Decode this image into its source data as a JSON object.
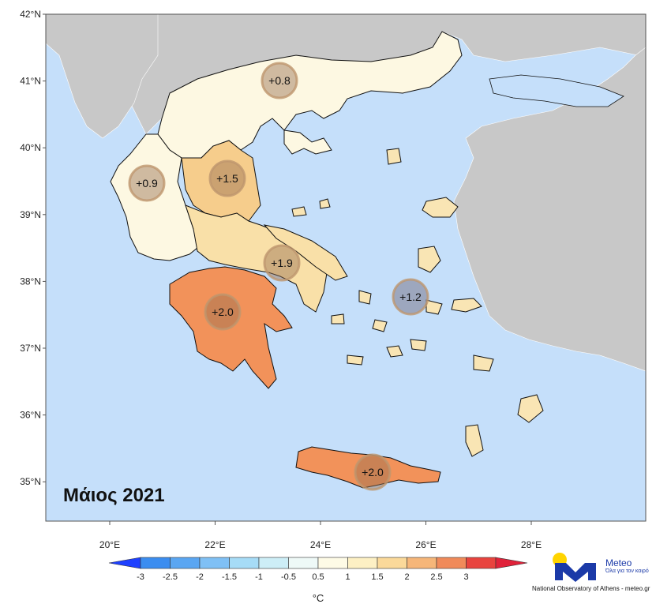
{
  "map": {
    "title": "Μάιος 2021",
    "colors": {
      "sea": "#c5dffa",
      "foreign_land": "#c8c8c8",
      "border": "#111111"
    },
    "lat_labels": [
      "42°N",
      "41°N",
      "40°N",
      "39°N",
      "38°N",
      "37°N",
      "36°N",
      "35°N"
    ],
    "lon_labels": [
      "20°E",
      "22°E",
      "24°E",
      "26°E",
      "28°E"
    ],
    "regions": [
      {
        "name": "Macedonia-Thrace",
        "anomaly": "+0.8",
        "fill": "#fdf8e2"
      },
      {
        "name": "Epirus",
        "anomaly": "+0.9",
        "fill": "#fdf8e2"
      },
      {
        "name": "Thessaly",
        "anomaly": "+1.5",
        "fill": "#f6cd8c"
      },
      {
        "name": "Central Greece",
        "anomaly": "+1.9",
        "fill": "#f9e0a8"
      },
      {
        "name": "Peloponnese",
        "anomaly": "+2.0",
        "fill": "#f2925a"
      },
      {
        "name": "Aegean Islands",
        "anomaly": "+1.2",
        "fill": "#f9e5b4"
      },
      {
        "name": "Crete",
        "anomaly": "+2.0",
        "fill": "#f2925a"
      }
    ]
  },
  "colorbar": {
    "ticks": [
      "-3",
      "-2.5",
      "-2",
      "-1.5",
      "-1",
      "-0.5",
      "0.5",
      "1",
      "1.5",
      "2",
      "2.5",
      "3"
    ],
    "colors": [
      "#3b8df0",
      "#5aa6f2",
      "#7fc0f5",
      "#a6dcf7",
      "#cdeef7",
      "#eef9f7",
      "#fefbe6",
      "#fdf0c4",
      "#fbd99a",
      "#f6b679",
      "#f08a5a",
      "#e8433e"
    ],
    "low_color": "#1e40ff",
    "high_color": "#e0223a",
    "unit": "°C"
  },
  "logo": {
    "name": "Meteo",
    "tagline": "Όλα για τον καιρό",
    "footer": "National Observatory of Athens - meteo.gr",
    "brand_color": "#1b3aa8",
    "sun_color": "#ffd400"
  }
}
